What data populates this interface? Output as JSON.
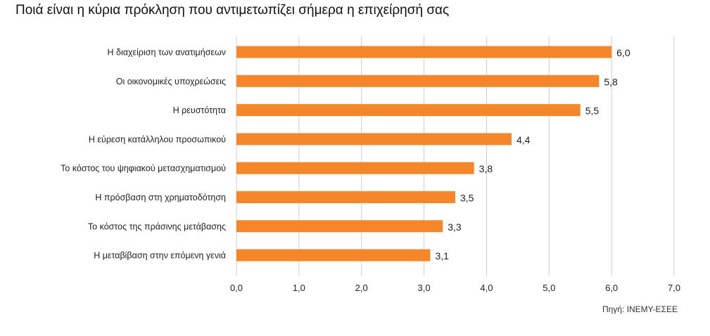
{
  "chart_data": {
    "type": "bar",
    "orientation": "horizontal",
    "title": "Ποιά είναι η κύρια πρόκληση που αντιμετωπίζει σήμερα η επιχείρησή σας",
    "categories": [
      "Η διαχείριση των ανατιμήσεων",
      "Οι οικονομικές υποχρεώσεις",
      "Η ρευστότητα",
      "Η εύρεση κατάλληλου προσωπικού",
      "Το κόστος του ψηφιακού μετασχηματισμού",
      "Η πρόσβαση στη χρηματοδότηση",
      "Το κόστος της πράσινης μετάβασης",
      "Η μεταβίβαση στην επόμενη γενιά"
    ],
    "values": [
      6.0,
      5.8,
      5.5,
      4.4,
      3.8,
      3.5,
      3.3,
      3.1
    ],
    "value_labels": [
      "6,0",
      "5,8",
      "5,5",
      "4,4",
      "3,8",
      "3,5",
      "3,3",
      "3,1"
    ],
    "xlim": [
      0,
      7
    ],
    "ticks": [
      0,
      1,
      2,
      3,
      4,
      5,
      6,
      7
    ],
    "tick_labels": [
      "0,0",
      "1,0",
      "2,0",
      "3,0",
      "4,0",
      "5,0",
      "6,0",
      "7,0"
    ],
    "grid": true,
    "bar_color": "#f5862a",
    "grid_color": "#cccccc",
    "source": "Πηγή: ΙΝΕΜΥ-ΕΣΕΕ"
  }
}
